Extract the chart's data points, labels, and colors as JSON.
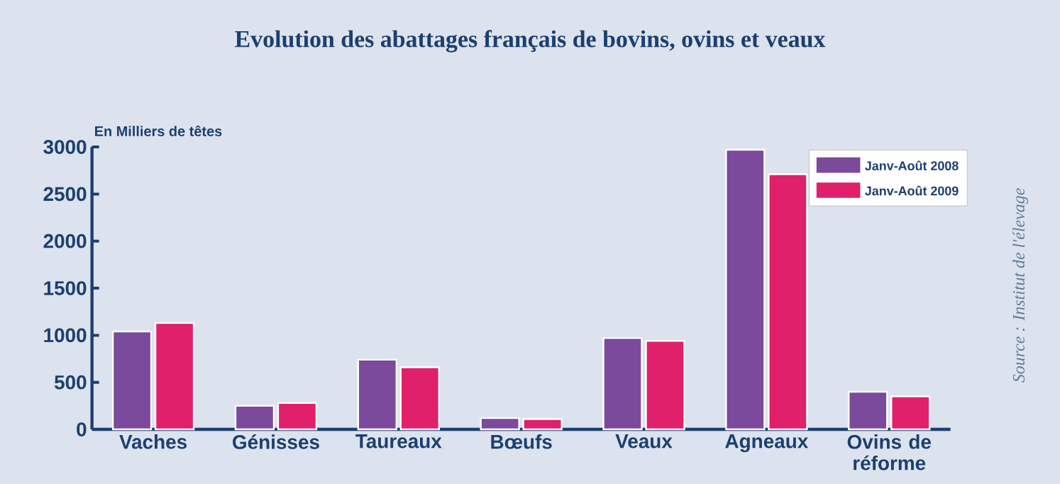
{
  "chart_data": {
    "type": "bar",
    "title": "Evolution des abattages français de bovins, ovins et veaux",
    "ylabel": "En Milliers de têtes",
    "categories": [
      "Vaches",
      "Génisses",
      "Taureaux",
      "Bœufs",
      "Veaux",
      "Agneaux",
      "Ovins de réforme"
    ],
    "series": [
      {
        "name": "Janv-Août 2008",
        "color": "#7b4a9c",
        "values": [
          1040,
          250,
          740,
          120,
          970,
          2970,
          400
        ]
      },
      {
        "name": "Janv-Août 2009",
        "color": "#e0206a",
        "values": [
          1130,
          280,
          660,
          110,
          940,
          2710,
          350
        ]
      }
    ],
    "ylim": [
      0,
      3000
    ],
    "yticks": [
      0,
      500,
      1000,
      1500,
      2000,
      2500,
      3000
    ],
    "grid": false,
    "legend": "top right",
    "annotations": [
      "Source : Institut de l'élevage"
    ]
  }
}
